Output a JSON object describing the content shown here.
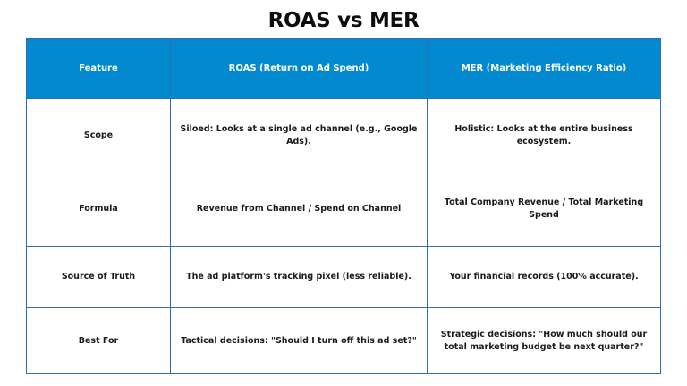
{
  "title": "ROAS vs MER",
  "colors": {
    "header_bg": "#0289d0",
    "border": "#2e6eae",
    "header_text": "#ffffff",
    "body_text": "#1a1a1a"
  },
  "table": {
    "headers": [
      "Feature",
      "ROAS (Return on Ad Spend)",
      "MER (Marketing Efficiency Ratio)"
    ],
    "rows": [
      {
        "feature": "Scope",
        "roas": "Siloed: Looks at a single ad channel (e.g., Google Ads).",
        "mer": "Holistic: Looks at the entire business ecosystem."
      },
      {
        "feature": "Formula",
        "roas": "Revenue from Channel / Spend on Channel",
        "mer": "Total Company Revenue / Total Marketing Spend"
      },
      {
        "feature": "Source of Truth",
        "roas": "The ad platform's tracking pixel (less reliable).",
        "mer": "Your financial records (100% accurate)."
      },
      {
        "feature": "Best For",
        "roas": "Tactical decisions: \"Should I turn off this ad set?\"",
        "mer": "Strategic decisions: \"How much should our total marketing budget be next quarter?\""
      }
    ]
  }
}
